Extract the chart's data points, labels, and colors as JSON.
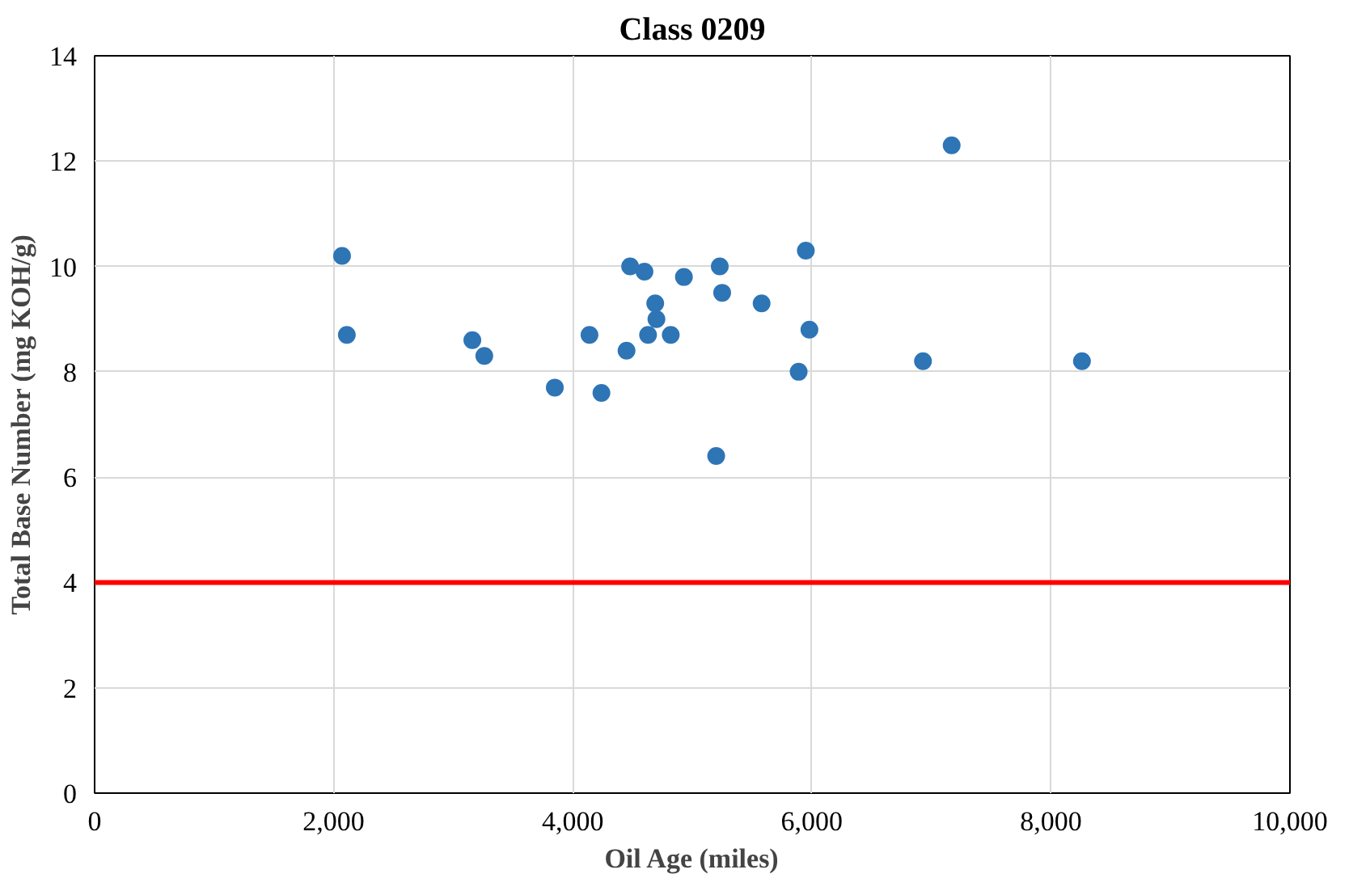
{
  "chart_data": {
    "type": "scatter",
    "title": "Class 0209",
    "xlabel": "Oil Age (miles)",
    "ylabel": "Total Base Number (mg KOH/g)",
    "x": [
      2070,
      2110,
      3160,
      3260,
      3850,
      4140,
      4240,
      4450,
      4480,
      4600,
      4630,
      4690,
      4700,
      4820,
      4930,
      5200,
      5230,
      5250,
      5580,
      5890,
      5950,
      5980,
      6930,
      7170,
      8260
    ],
    "values": [
      10.2,
      8.7,
      8.6,
      8.3,
      7.7,
      8.7,
      7.6,
      8.4,
      10.0,
      9.9,
      8.7,
      9.3,
      9.0,
      8.7,
      9.8,
      6.4,
      10.0,
      9.5,
      9.3,
      8.0,
      10.3,
      8.8,
      8.2,
      12.3,
      8.2
    ],
    "color": "#2e75b6",
    "marker": "circle",
    "xlim": [
      0,
      10000
    ],
    "xticks": [
      {
        "value": 0,
        "label": "0"
      },
      {
        "value": 2000,
        "label": "2,000"
      },
      {
        "value": 4000,
        "label": "4,000"
      },
      {
        "value": 6000,
        "label": "6,000"
      },
      {
        "value": 8000,
        "label": "8,000"
      },
      {
        "value": 10000,
        "label": "10,000"
      }
    ],
    "ylim": [
      0,
      14
    ],
    "yticks": [
      0,
      2,
      4,
      6,
      8,
      10,
      12,
      14
    ],
    "grid": true,
    "ref_lines": [
      {
        "axis": "y",
        "value": 4,
        "label": null,
        "color": "#ff0000"
      }
    ]
  }
}
